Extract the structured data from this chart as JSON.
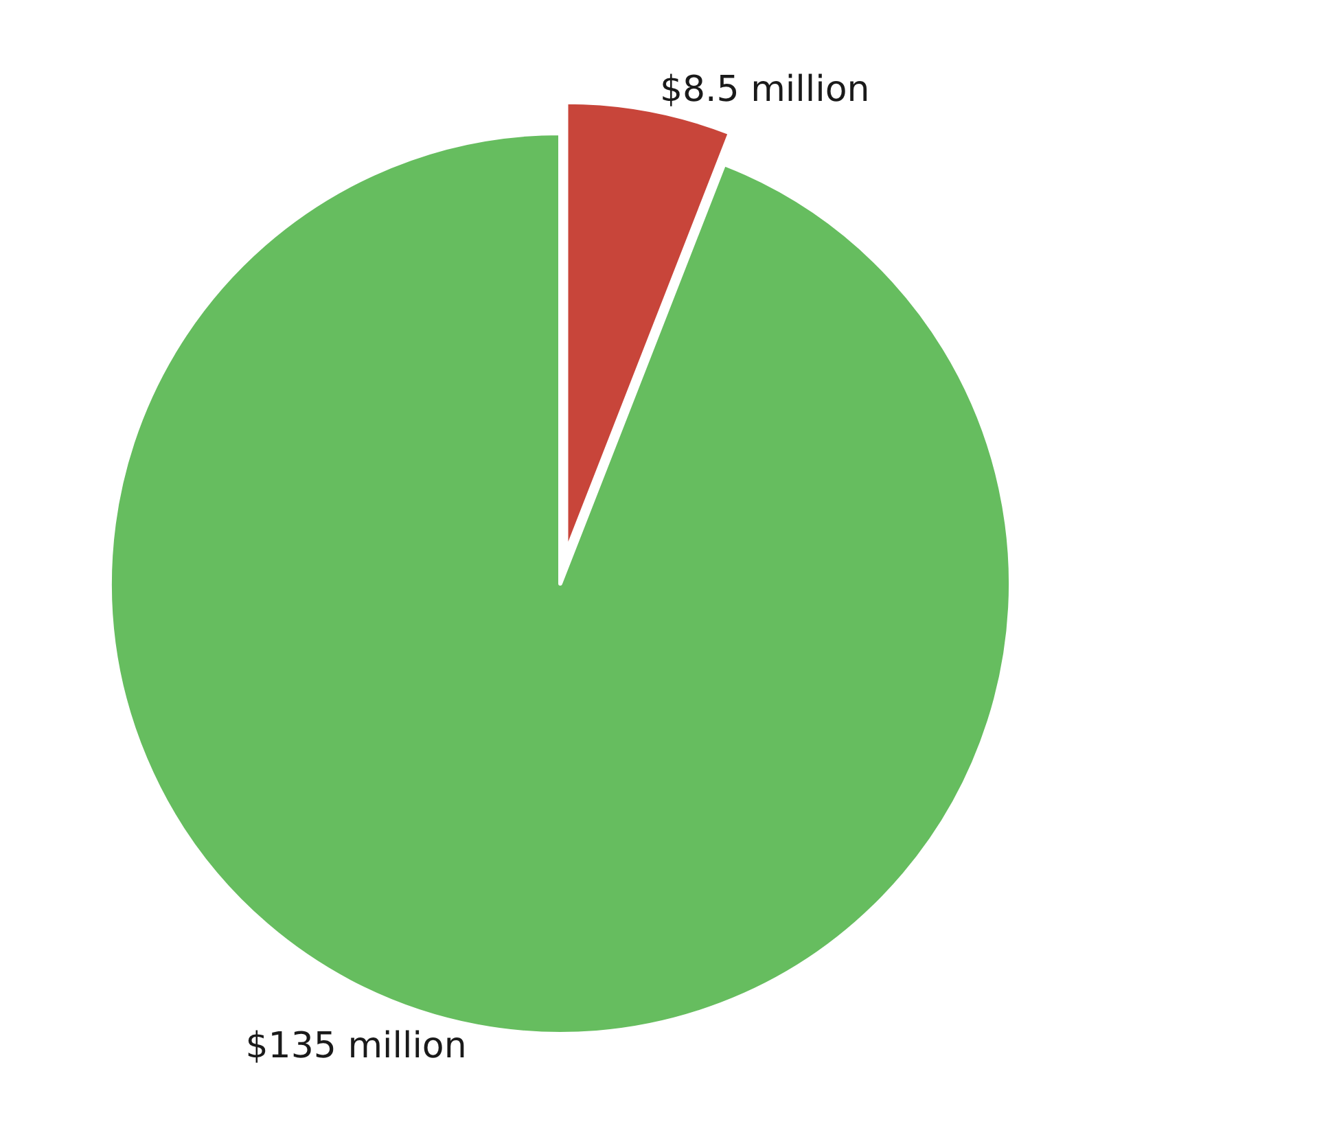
{
  "chart_data": {
    "type": "pie",
    "categories": [
      null,
      null
    ],
    "values": [
      8.5,
      135
    ],
    "colors": [
      "#c8453a",
      "#66bd5f"
    ],
    "value_labels": [
      "$8.5 million",
      "$135 million"
    ],
    "legend": false
  }
}
